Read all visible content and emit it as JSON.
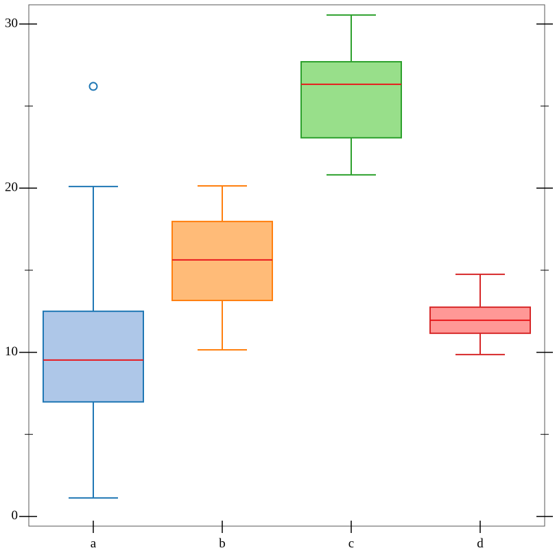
{
  "chart_data": {
    "type": "box",
    "categories": [
      "a",
      "b",
      "c",
      "d"
    ],
    "boxes": [
      {
        "whislo": 1.13,
        "q1": 6.98,
        "med": 9.53,
        "q3": 12.5,
        "whishi": 20.1,
        "fliers": [
          26.2
        ],
        "color": "#1f77b4",
        "fill": "#aec7e8"
      },
      {
        "whislo": 10.15,
        "q1": 13.16,
        "med": 15.63,
        "q3": 17.97,
        "whishi": 20.14,
        "fliers": [],
        "color": "#ff7f0e",
        "fill": "#ffbb78"
      },
      {
        "whislo": 20.81,
        "q1": 23.07,
        "med": 26.33,
        "q3": 27.7,
        "whishi": 30.55,
        "fliers": [],
        "color": "#2ca02c",
        "fill": "#98df8a"
      },
      {
        "whislo": 9.86,
        "q1": 11.16,
        "med": 11.95,
        "q3": 12.75,
        "whishi": 14.75,
        "fliers": [],
        "color": "#d62728",
        "fill": "#ff9896"
      }
    ],
    "median_color": "#e8191c",
    "ylim": [
      -0.59,
      31.17
    ],
    "yticks": [
      0,
      10,
      20,
      30
    ],
    "yminorticks": [
      5,
      15,
      25
    ]
  }
}
